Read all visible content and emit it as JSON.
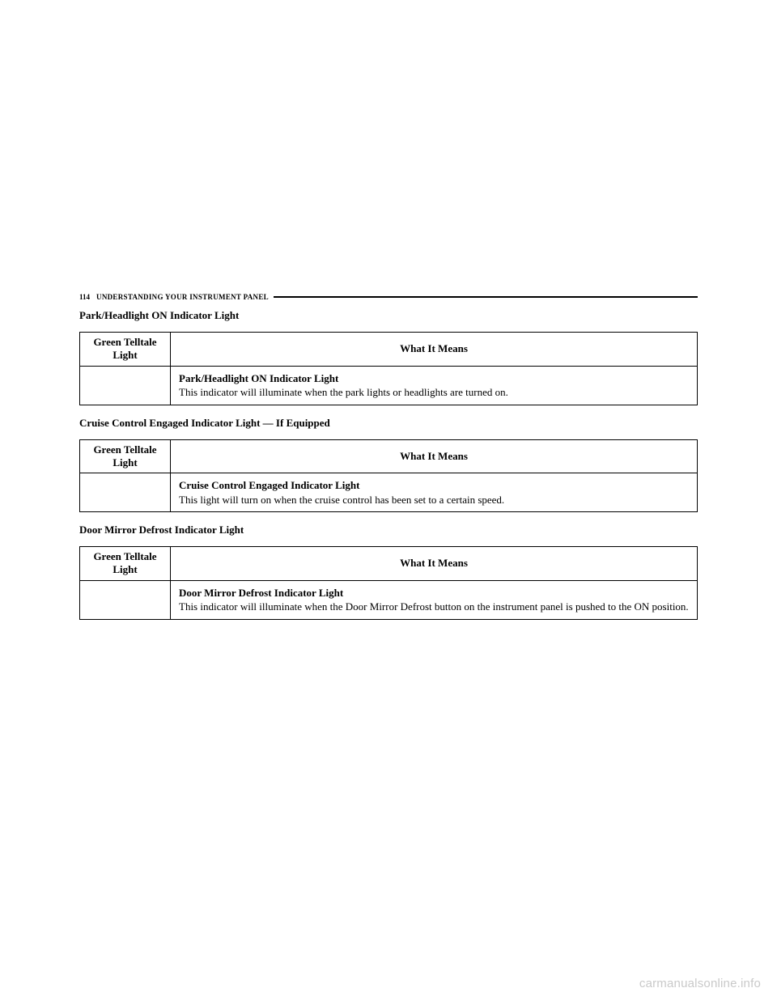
{
  "page": {
    "number": "114",
    "chapter": "UNDERSTANDING YOUR INSTRUMENT PANEL",
    "watermark": "carmanualsonline.info"
  },
  "sections": [
    {
      "heading": "Park/Headlight ON Indicator Light",
      "col_left": "Green Telltale Light",
      "col_right": "What It Means",
      "desc_title": "Park/Headlight ON Indicator Light",
      "desc_body": "This indicator will illuminate when the park lights or headlights are turned on."
    },
    {
      "heading": "Cruise Control Engaged Indicator Light — If Equipped",
      "col_left": "Green Telltale Light",
      "col_right": "What It Means",
      "desc_title": "Cruise Control Engaged Indicator Light",
      "desc_body": "This light will turn on when the cruise control has been set to a certain speed."
    },
    {
      "heading": "Door Mirror Defrost Indicator Light",
      "col_left": "Green Telltale Light",
      "col_right": "What It Means",
      "desc_title": "Door Mirror Defrost Indicator Light",
      "desc_body": "This indicator will illuminate when the Door Mirror Defrost button on the instrument panel is pushed to the ON position."
    }
  ]
}
